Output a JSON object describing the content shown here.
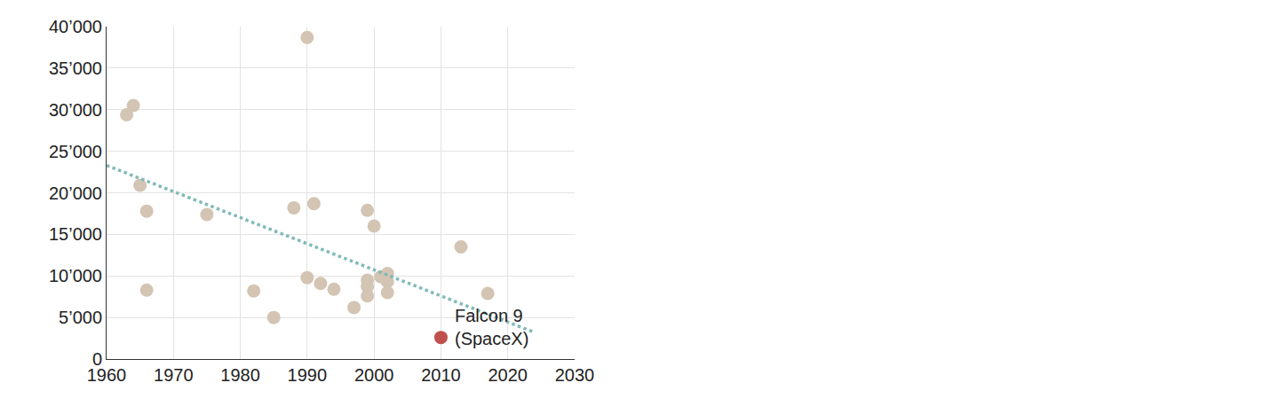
{
  "chart_data": {
    "type": "scatter",
    "grid": true,
    "xlim": [
      1960,
      2030
    ],
    "xticks": [
      1960,
      1970,
      1980,
      1990,
      2000,
      2010,
      2020,
      2030
    ],
    "ylim": [
      0,
      40000
    ],
    "yticks": [
      {
        "value": 0,
        "label": "0"
      },
      {
        "value": 5000,
        "label": "5’000"
      },
      {
        "value": 10000,
        "label": "10’000"
      },
      {
        "value": 15000,
        "label": "15’000"
      },
      {
        "value": 20000,
        "label": "20’000"
      },
      {
        "value": 25000,
        "label": "25’000"
      },
      {
        "value": 30000,
        "label": "30’000"
      },
      {
        "value": 35000,
        "label": "35’000"
      },
      {
        "value": 40000,
        "label": "40’000"
      }
    ],
    "series": [
      {
        "type": "scatter",
        "marker": "circle",
        "color": "#d3c4b3",
        "x": [
          1963,
          1964,
          1965,
          1966,
          1966,
          1975,
          1982,
          1985,
          1988,
          1990,
          1991,
          1990,
          1992,
          1994,
          1997,
          1999,
          2000,
          1999,
          1999,
          1999,
          2001,
          2002,
          2002,
          2002,
          2013,
          2017
        ],
        "values": [
          29400,
          30500,
          20900,
          17800,
          8300,
          17400,
          8200,
          5000,
          18200,
          38700,
          18700,
          9800,
          9100,
          8400,
          6200,
          17900,
          16000,
          9500,
          8700,
          7600,
          9900,
          10300,
          9300,
          8000,
          13500,
          7900
        ]
      },
      {
        "type": "line",
        "line_style": "dotted",
        "color": "#7fbab7",
        "x": [
          1960,
          2024
        ],
        "values": [
          23300,
          3200
        ]
      },
      {
        "type": "scatter",
        "marker": "circle",
        "color": "#c0504d",
        "name": "Falcon 9\n(SpaceX)",
        "x": [
          2010
        ],
        "values": [
          2600
        ]
      }
    ]
  }
}
